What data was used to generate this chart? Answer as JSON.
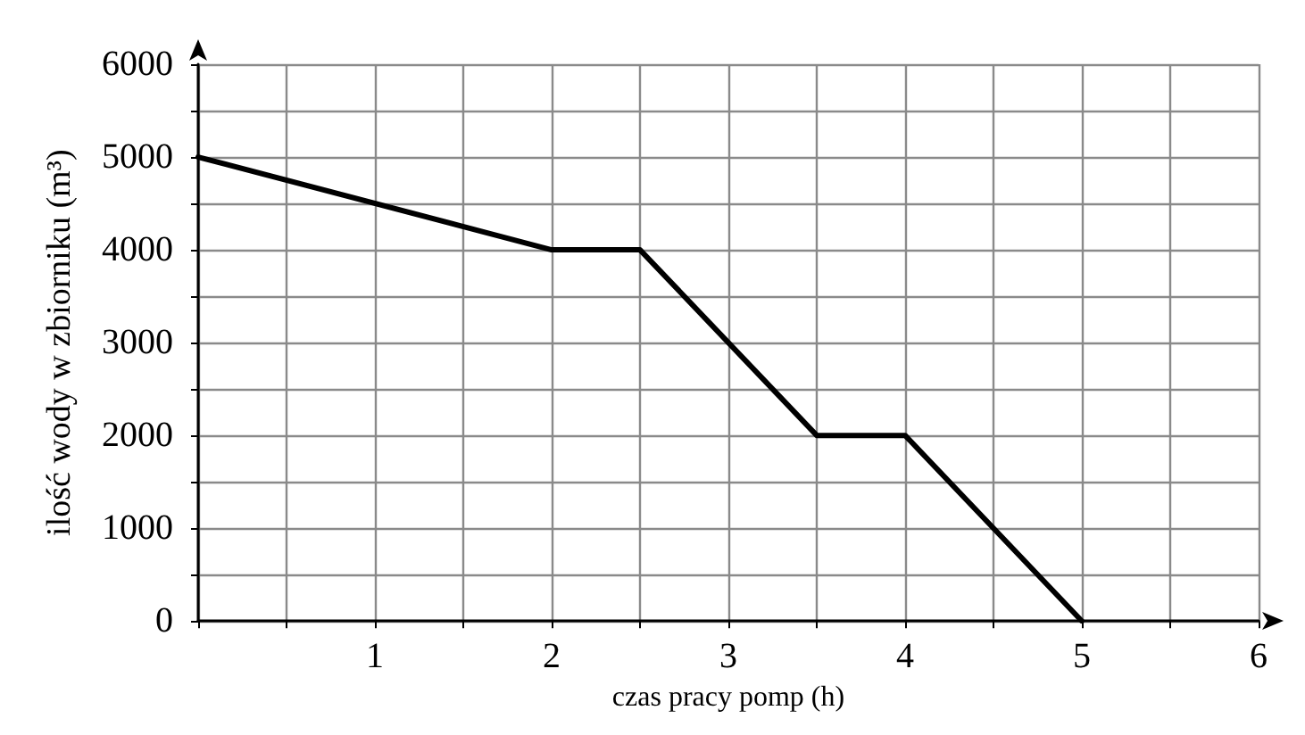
{
  "chart_data": {
    "type": "line",
    "xlabel": "czas pracy pomp (h)",
    "ylabel": "ilość wody w zbiorniku (m³)",
    "x": [
      0,
      2,
      2.5,
      3.5,
      4,
      5
    ],
    "series": [
      {
        "color": "#000000",
        "values": [
          5000,
          4000,
          4000,
          2000,
          2000,
          0
        ]
      }
    ],
    "xlim": [
      0,
      6
    ],
    "xticks": [
      {
        "value": 0,
        "label": null
      },
      {
        "value": 0.5,
        "label": null
      },
      1,
      {
        "value": 1.5,
        "label": null
      },
      2,
      {
        "value": 2.5,
        "label": null
      },
      3,
      {
        "value": 3.5,
        "label": null
      },
      4,
      {
        "value": 4.5,
        "label": null
      },
      5,
      {
        "value": 5.5,
        "label": null
      },
      6
    ],
    "ylim": [
      0,
      6000
    ],
    "yticks": [
      0,
      {
        "value": 500,
        "label": null
      },
      1000,
      {
        "value": 1500,
        "label": null
      },
      2000,
      {
        "value": 2500,
        "label": null
      },
      3000,
      {
        "value": 3500,
        "label": null
      },
      4000,
      {
        "value": 4500,
        "label": null
      },
      5000,
      {
        "value": 5500,
        "label": null
      },
      6000
    ],
    "grid": true,
    "marker": "none",
    "line_style": "solid"
  }
}
